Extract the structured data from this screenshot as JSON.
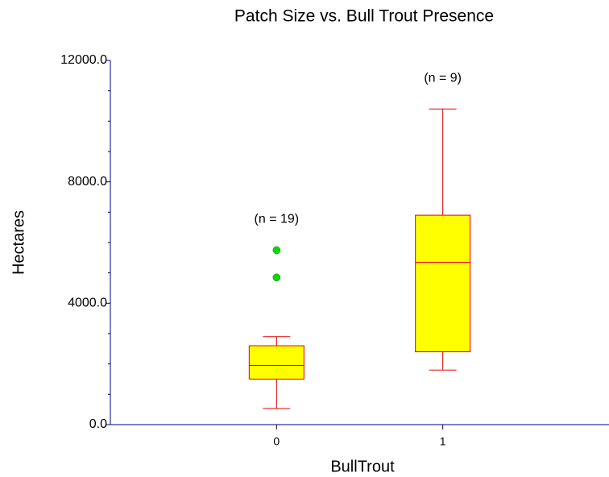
{
  "chart_data": {
    "type": "box",
    "title": "Patch Size vs. Bull Trout Presence",
    "x_label": "BullTrout",
    "y_label": "Hectares",
    "categories": [
      "0",
      "1"
    ],
    "xlim": [
      -1,
      2
    ],
    "ylim": [
      0,
      12000
    ],
    "yticks": [
      {
        "value": 0,
        "label": "0.0"
      },
      {
        "value": 4000,
        "label": "4000.0"
      },
      {
        "value": 8000,
        "label": "8000.0"
      },
      {
        "value": 12000,
        "label": "12000.0"
      }
    ],
    "yminor_ticks": [
      1000,
      2000,
      3000,
      5000,
      6000,
      7000,
      9000,
      10000,
      11000
    ],
    "box_color": "#ffff00",
    "line_color": "#e00000",
    "outlier_color": "#00dd00",
    "axis_color": "#000080",
    "annotations": [
      "(n = 19)",
      "(n = 9)"
    ],
    "boxes": [
      {
        "min": 530,
        "q1": 1500,
        "median": 1950,
        "q3": 2600,
        "max": 2900,
        "outliers": [
          5750,
          4850
        ]
      },
      {
        "min": 1800,
        "q1": 2400,
        "median": 5350,
        "q3": 6900,
        "max": 10400,
        "outliers": []
      }
    ]
  }
}
